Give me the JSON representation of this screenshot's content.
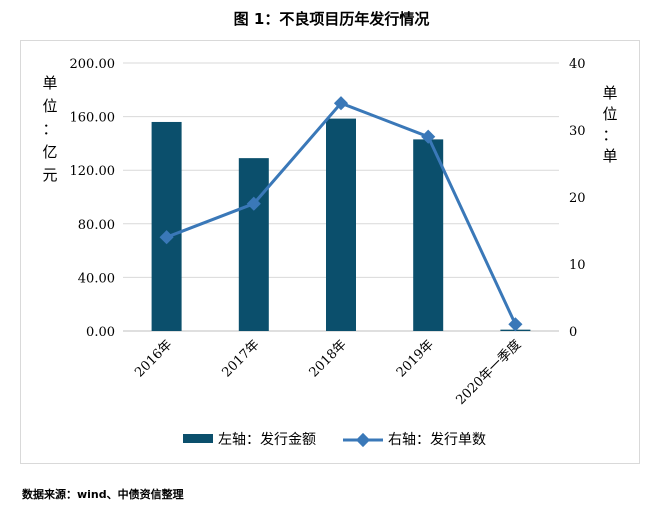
{
  "title": "图 1：不良项目历年发行情况",
  "source": "数据来源：wind、中债资信整理",
  "chart_data": {
    "type": "bar",
    "categories": [
      "2016年",
      "2017年",
      "2018年",
      "2019年",
      "2020年一季度"
    ],
    "series": [
      {
        "name": "左轴：发行金额",
        "type": "bar",
        "axis": "left",
        "color": "#0b4f6c",
        "values": [
          156.0,
          129.0,
          158.5,
          143.0,
          1.0
        ]
      },
      {
        "name": "右轴：发行单数",
        "type": "line",
        "axis": "right",
        "color": "#3a78b8",
        "values": [
          14,
          19,
          34,
          29,
          1
        ]
      }
    ],
    "left_axis": {
      "label": "单位：亿元",
      "min": 0,
      "max": 200,
      "ticks": [
        "0.00",
        "40.00",
        "80.00",
        "120.00",
        "160.00",
        "200.00"
      ]
    },
    "right_axis": {
      "label": "单位：单",
      "min": 0,
      "max": 40,
      "ticks": [
        "0",
        "10",
        "20",
        "30",
        "40"
      ]
    },
    "grid": "horizontal",
    "legend": "bottom"
  }
}
